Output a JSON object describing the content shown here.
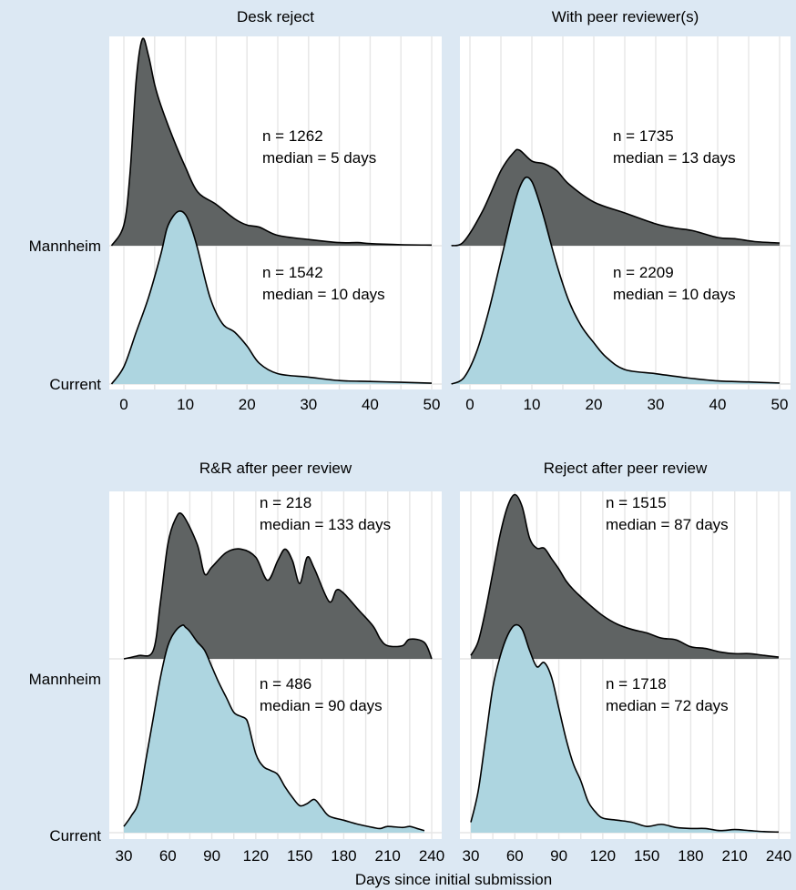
{
  "colors": {
    "background": "#dce8f3",
    "panel": "#ffffff",
    "grid": "#e6e6e6",
    "mannheim_fill": "#5f6363",
    "current_fill": "#add5e0",
    "outline": "#000000"
  },
  "x_axis_title": "Days since initial submission",
  "chart_data": [
    {
      "type": "area",
      "title": "Desk reject",
      "xlim": [
        -5,
        50
      ],
      "xticks": [
        0,
        10,
        20,
        30,
        40,
        50
      ],
      "row_labels": [
        "Mannheim",
        "Current"
      ],
      "grid": true,
      "annotations": [
        {
          "lines": [
            "n = 1262",
            "median = 5 days"
          ]
        },
        {
          "lines": [
            "n = 1542",
            "median = 10 days"
          ]
        }
      ],
      "series": [
        {
          "name": "Mannheim",
          "x": [
            -2,
            0,
            1,
            2,
            3,
            4,
            5,
            6,
            8,
            10,
            12,
            15,
            18,
            20,
            22,
            25,
            30,
            35,
            38,
            40,
            45,
            50
          ],
          "density": [
            0,
            0.1,
            0.35,
            0.8,
            1.0,
            0.92,
            0.78,
            0.68,
            0.52,
            0.38,
            0.26,
            0.2,
            0.13,
            0.1,
            0.09,
            0.05,
            0.03,
            0.015,
            0.015,
            0.01,
            0.005,
            0.003
          ]
        },
        {
          "name": "Current",
          "x": [
            -2,
            0,
            2,
            4,
            6,
            7,
            8,
            9,
            10,
            11,
            12,
            14,
            16,
            18,
            20,
            22,
            25,
            30,
            35,
            40,
            45,
            50
          ],
          "density": [
            0,
            0.1,
            0.3,
            0.5,
            0.75,
            0.9,
            0.97,
            1.0,
            0.98,
            0.9,
            0.78,
            0.5,
            0.35,
            0.3,
            0.22,
            0.12,
            0.06,
            0.04,
            0.02,
            0.015,
            0.01,
            0.005
          ]
        }
      ]
    },
    {
      "type": "area",
      "title": "With peer reviewer(s)",
      "xlim": [
        -5,
        50
      ],
      "xticks": [
        0,
        10,
        20,
        30,
        40,
        50
      ],
      "row_labels": [
        "Mannheim",
        "Current"
      ],
      "grid": true,
      "annotations": [
        {
          "lines": [
            "n = 1735",
            "median = 13 days"
          ]
        },
        {
          "lines": [
            "n = 2209",
            "median = 10 days"
          ]
        }
      ],
      "series": [
        {
          "name": "Mannheim",
          "x": [
            -3,
            -1,
            2,
            5,
            7,
            8,
            10,
            12,
            14,
            16,
            20,
            25,
            30,
            33,
            36,
            40,
            43,
            46,
            50
          ],
          "density": [
            0,
            0.03,
            0.25,
            0.55,
            0.68,
            0.7,
            0.62,
            0.6,
            0.55,
            0.45,
            0.32,
            0.24,
            0.16,
            0.13,
            0.11,
            0.06,
            0.05,
            0.03,
            0.02
          ]
        },
        {
          "name": "Current",
          "x": [
            -3,
            -1,
            1,
            3,
            5,
            7,
            8,
            9,
            10,
            11,
            12,
            14,
            16,
            18,
            20,
            22,
            25,
            30,
            35,
            40,
            45,
            50
          ],
          "density": [
            0,
            0.03,
            0.15,
            0.35,
            0.6,
            0.85,
            0.95,
            1.0,
            0.98,
            0.9,
            0.8,
            0.58,
            0.4,
            0.28,
            0.2,
            0.13,
            0.07,
            0.05,
            0.03,
            0.015,
            0.01,
            0.005
          ]
        }
      ]
    },
    {
      "type": "area",
      "title": "R&R after peer review",
      "xlim": [
        30,
        240
      ],
      "xticks": [
        30,
        60,
        90,
        120,
        150,
        180,
        210,
        240
      ],
      "row_labels": [
        "Mannheim",
        "Current"
      ],
      "grid": true,
      "annotations": [
        {
          "lines": [
            "n = 218",
            "median = 133 days"
          ]
        },
        {
          "lines": [
            "n = 486",
            "median = 90 days"
          ]
        }
      ],
      "series": [
        {
          "name": "Mannheim",
          "x": [
            30,
            40,
            50,
            55,
            60,
            65,
            70,
            80,
            85,
            90,
            100,
            110,
            120,
            128,
            135,
            140,
            145,
            150,
            155,
            160,
            170,
            175,
            180,
            190,
            200,
            205,
            210,
            220,
            225,
            235,
            240
          ],
          "density": [
            0,
            0.02,
            0.05,
            0.35,
            0.7,
            0.85,
            0.88,
            0.7,
            0.52,
            0.56,
            0.65,
            0.67,
            0.62,
            0.48,
            0.6,
            0.67,
            0.6,
            0.46,
            0.62,
            0.55,
            0.35,
            0.42,
            0.4,
            0.3,
            0.2,
            0.12,
            0.08,
            0.08,
            0.12,
            0.1,
            0
          ]
        },
        {
          "name": "Current",
          "x": [
            30,
            35,
            40,
            45,
            50,
            55,
            60,
            65,
            70,
            72,
            75,
            80,
            85,
            90,
            95,
            100,
            105,
            110,
            113,
            115,
            120,
            125,
            130,
            135,
            140,
            145,
            150,
            155,
            160,
            165,
            170,
            180,
            190,
            200,
            205,
            210,
            220,
            225,
            230,
            235
          ],
          "density": [
            0.03,
            0.08,
            0.15,
            0.35,
            0.55,
            0.75,
            0.9,
            0.97,
            1.0,
            0.99,
            0.97,
            0.92,
            0.88,
            0.8,
            0.72,
            0.65,
            0.58,
            0.56,
            0.55,
            0.52,
            0.38,
            0.32,
            0.3,
            0.28,
            0.22,
            0.17,
            0.13,
            0.14,
            0.16,
            0.12,
            0.08,
            0.06,
            0.04,
            0.025,
            0.02,
            0.03,
            0.025,
            0.03,
            0.02,
            0.01
          ]
        }
      ]
    },
    {
      "type": "area",
      "title": "Reject after peer review",
      "xlim": [
        30,
        240
      ],
      "xticks": [
        30,
        60,
        90,
        120,
        150,
        180,
        210,
        240
      ],
      "row_labels": [
        "Mannheim",
        "Current"
      ],
      "grid": true,
      "annotations": [
        {
          "lines": [
            "n = 1515",
            "median = 87 days"
          ]
        },
        {
          "lines": [
            "n = 1718",
            "median = 72 days"
          ]
        }
      ],
      "series": [
        {
          "name": "Mannheim",
          "x": [
            30,
            35,
            40,
            45,
            50,
            55,
            60,
            65,
            70,
            75,
            80,
            85,
            90,
            95,
            100,
            110,
            120,
            130,
            140,
            150,
            160,
            170,
            180,
            190,
            200,
            210,
            220,
            230,
            240
          ],
          "density": [
            0.02,
            0.1,
            0.28,
            0.5,
            0.72,
            0.88,
            0.95,
            0.88,
            0.7,
            0.64,
            0.64,
            0.58,
            0.52,
            0.45,
            0.4,
            0.32,
            0.25,
            0.2,
            0.17,
            0.15,
            0.12,
            0.11,
            0.07,
            0.06,
            0.04,
            0.03,
            0.03,
            0.02,
            0.01
          ]
        },
        {
          "name": "Current",
          "x": [
            30,
            35,
            40,
            45,
            50,
            55,
            60,
            65,
            70,
            75,
            80,
            85,
            90,
            95,
            100,
            105,
            110,
            115,
            120,
            130,
            140,
            150,
            160,
            170,
            180,
            190,
            200,
            210,
            220,
            230,
            240
          ],
          "density": [
            0.05,
            0.2,
            0.45,
            0.7,
            0.85,
            0.95,
            1.0,
            0.98,
            0.88,
            0.8,
            0.82,
            0.75,
            0.6,
            0.45,
            0.33,
            0.25,
            0.15,
            0.1,
            0.07,
            0.06,
            0.05,
            0.03,
            0.04,
            0.025,
            0.02,
            0.02,
            0.01,
            0.015,
            0.01,
            0.005,
            0.003
          ]
        }
      ]
    }
  ]
}
